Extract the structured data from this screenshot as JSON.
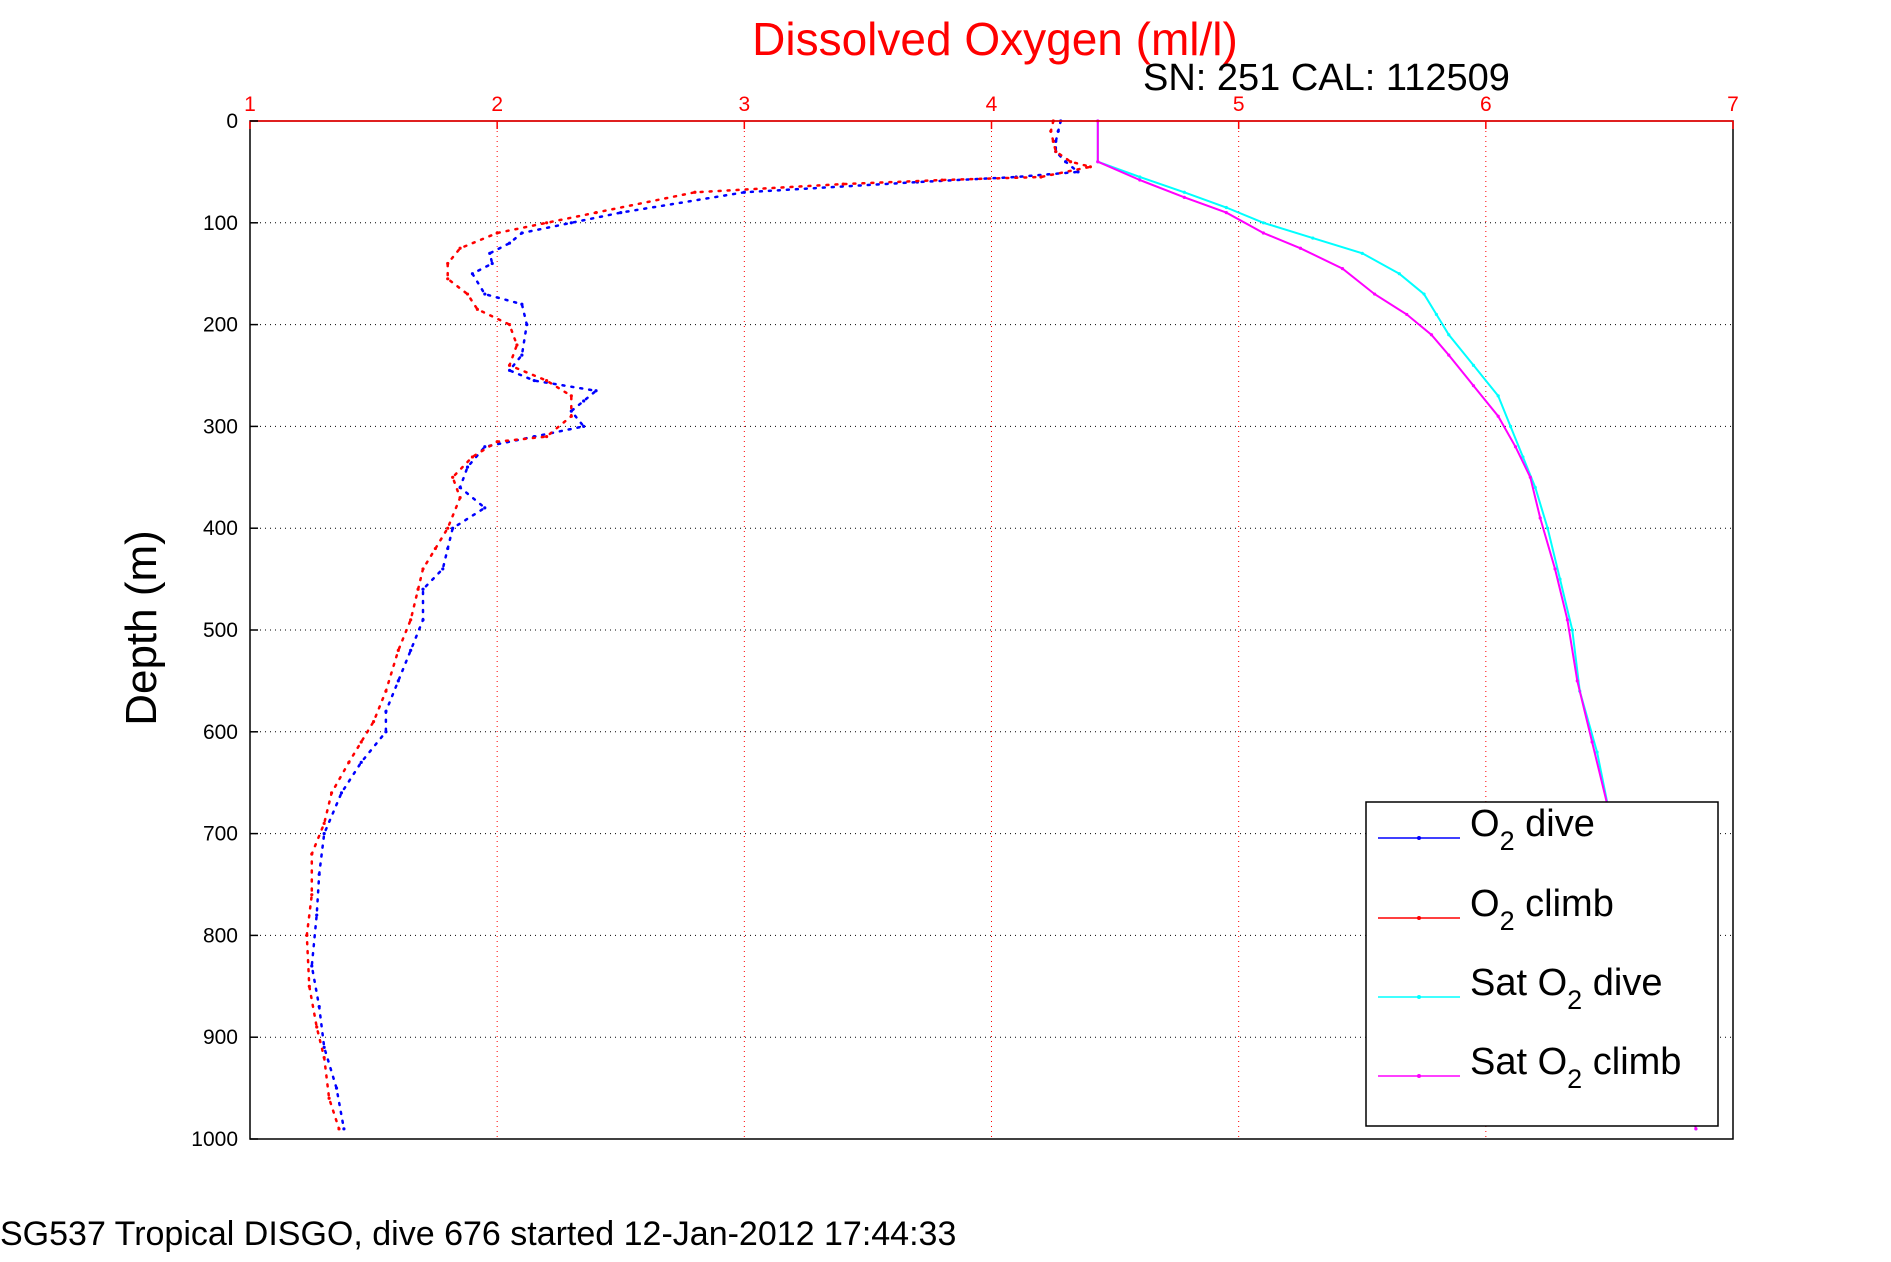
{
  "chart_data": {
    "type": "line",
    "title": "Dissolved Oxygen (ml/l)",
    "subtitle": "SN: 251  CAL: 112509",
    "ylabel": "Depth (m)",
    "footer": "SG537 Tropical DISGO, dive 676 started 12-Jan-2012 17:44:33",
    "x_ticks": [
      "1",
      "2",
      "3",
      "4",
      "5",
      "6",
      "7"
    ],
    "y_ticks": [
      "0",
      "100",
      "200",
      "300",
      "400",
      "500",
      "600",
      "700",
      "800",
      "900",
      "1000"
    ],
    "xlim": [
      1,
      7
    ],
    "ylim": [
      0,
      1000
    ],
    "y_reversed": true,
    "x_axis_position": "top",
    "grid": true,
    "legend_position": "bottom-right",
    "legend": [
      {
        "sym": "O",
        "sub": "2",
        "rest": " dive"
      },
      {
        "sym": "O",
        "sub": "2",
        "rest": " climb"
      },
      {
        "sym": "Sat O",
        "sub": "2",
        "rest": " dive"
      },
      {
        "sym": "Sat O",
        "sub": "2",
        "rest": " climb"
      }
    ],
    "series": [
      {
        "key": "o2_dive",
        "color": "#0000ff",
        "style": "dotted",
        "points": [
          [
            4.28,
            0
          ],
          [
            4.27,
            10
          ],
          [
            4.26,
            20
          ],
          [
            4.26,
            30
          ],
          [
            4.3,
            40
          ],
          [
            4.35,
            50
          ],
          [
            4.1,
            55
          ],
          [
            3.7,
            60
          ],
          [
            3.0,
            70
          ],
          [
            2.5,
            90
          ],
          [
            2.3,
            100
          ],
          [
            2.1,
            110
          ],
          [
            2.05,
            120
          ],
          [
            1.97,
            130
          ],
          [
            1.98,
            140
          ],
          [
            1.9,
            150
          ],
          [
            1.95,
            170
          ],
          [
            2.1,
            180
          ],
          [
            2.12,
            200
          ],
          [
            2.1,
            230
          ],
          [
            2.05,
            245
          ],
          [
            2.15,
            255
          ],
          [
            2.4,
            265
          ],
          [
            2.35,
            275
          ],
          [
            2.3,
            285
          ],
          [
            2.35,
            300
          ],
          [
            2.15,
            310
          ],
          [
            1.95,
            320
          ],
          [
            1.88,
            340
          ],
          [
            1.85,
            360
          ],
          [
            1.95,
            380
          ],
          [
            1.82,
            400
          ],
          [
            1.8,
            420
          ],
          [
            1.78,
            440
          ],
          [
            1.7,
            460
          ],
          [
            1.7,
            490
          ],
          [
            1.65,
            520
          ],
          [
            1.6,
            550
          ],
          [
            1.55,
            580
          ],
          [
            1.55,
            600
          ],
          [
            1.45,
            630
          ],
          [
            1.37,
            660
          ],
          [
            1.3,
            700
          ],
          [
            1.28,
            740
          ],
          [
            1.27,
            780
          ],
          [
            1.25,
            830
          ],
          [
            1.28,
            870
          ],
          [
            1.3,
            910
          ],
          [
            1.35,
            950
          ],
          [
            1.38,
            990
          ]
        ]
      },
      {
        "key": "o2_climb",
        "color": "#ff0000",
        "style": "dotted",
        "points": [
          [
            4.25,
            0
          ],
          [
            4.24,
            10
          ],
          [
            4.25,
            20
          ],
          [
            4.26,
            30
          ],
          [
            4.32,
            40
          ],
          [
            4.4,
            45
          ],
          [
            4.2,
            55
          ],
          [
            3.8,
            58
          ],
          [
            3.4,
            62
          ],
          [
            2.8,
            70
          ],
          [
            2.4,
            90
          ],
          [
            2.2,
            100
          ],
          [
            2.0,
            110
          ],
          [
            1.85,
            125
          ],
          [
            1.8,
            140
          ],
          [
            1.8,
            155
          ],
          [
            1.88,
            170
          ],
          [
            1.92,
            185
          ],
          [
            2.05,
            200
          ],
          [
            2.08,
            220
          ],
          [
            2.05,
            240
          ],
          [
            2.2,
            255
          ],
          [
            2.3,
            270
          ],
          [
            2.3,
            290
          ],
          [
            2.2,
            310
          ],
          [
            2.0,
            315
          ],
          [
            1.9,
            330
          ],
          [
            1.82,
            350
          ],
          [
            1.85,
            370
          ],
          [
            1.8,
            400
          ],
          [
            1.75,
            420
          ],
          [
            1.7,
            440
          ],
          [
            1.68,
            460
          ],
          [
            1.65,
            490
          ],
          [
            1.6,
            520
          ],
          [
            1.55,
            560
          ],
          [
            1.5,
            590
          ],
          [
            1.45,
            610
          ],
          [
            1.4,
            630
          ],
          [
            1.33,
            660
          ],
          [
            1.3,
            690
          ],
          [
            1.25,
            720
          ],
          [
            1.25,
            760
          ],
          [
            1.23,
            800
          ],
          [
            1.24,
            850
          ],
          [
            1.27,
            890
          ],
          [
            1.3,
            920
          ],
          [
            1.32,
            960
          ],
          [
            1.36,
            990
          ]
        ]
      },
      {
        "key": "sat_o2_dive",
        "color": "#00ffff",
        "style": "solid",
        "points": [
          [
            4.43,
            0
          ],
          [
            4.43,
            40
          ],
          [
            4.6,
            55
          ],
          [
            4.78,
            70
          ],
          [
            4.95,
            85
          ],
          [
            5.1,
            100
          ],
          [
            5.3,
            115
          ],
          [
            5.5,
            130
          ],
          [
            5.65,
            150
          ],
          [
            5.75,
            170
          ],
          [
            5.8,
            190
          ],
          [
            5.85,
            210
          ],
          [
            5.95,
            240
          ],
          [
            6.05,
            270
          ],
          [
            6.1,
            300
          ],
          [
            6.15,
            330
          ],
          [
            6.2,
            360
          ],
          [
            6.25,
            400
          ],
          [
            6.3,
            450
          ],
          [
            6.35,
            500
          ],
          [
            6.38,
            560
          ],
          [
            6.45,
            620
          ],
          [
            6.5,
            680
          ],
          [
            6.58,
            740
          ],
          [
            6.65,
            800
          ],
          [
            6.72,
            860
          ],
          [
            6.78,
            920
          ],
          [
            6.85,
            990
          ]
        ]
      },
      {
        "key": "sat_o2_climb",
        "color": "#ff00ff",
        "style": "solid",
        "points": [
          [
            4.43,
            0
          ],
          [
            4.43,
            40
          ],
          [
            4.6,
            58
          ],
          [
            4.78,
            75
          ],
          [
            4.95,
            90
          ],
          [
            5.1,
            110
          ],
          [
            5.25,
            125
          ],
          [
            5.42,
            145
          ],
          [
            5.55,
            170
          ],
          [
            5.68,
            190
          ],
          [
            5.78,
            210
          ],
          [
            5.85,
            230
          ],
          [
            5.95,
            260
          ],
          [
            6.05,
            290
          ],
          [
            6.12,
            320
          ],
          [
            6.18,
            350
          ],
          [
            6.22,
            390
          ],
          [
            6.28,
            440
          ],
          [
            6.33,
            490
          ],
          [
            6.37,
            550
          ],
          [
            6.43,
            610
          ],
          [
            6.5,
            680
          ],
          [
            6.58,
            740
          ],
          [
            6.65,
            800
          ],
          [
            6.72,
            860
          ],
          [
            6.78,
            920
          ],
          [
            6.85,
            990
          ]
        ]
      }
    ]
  }
}
